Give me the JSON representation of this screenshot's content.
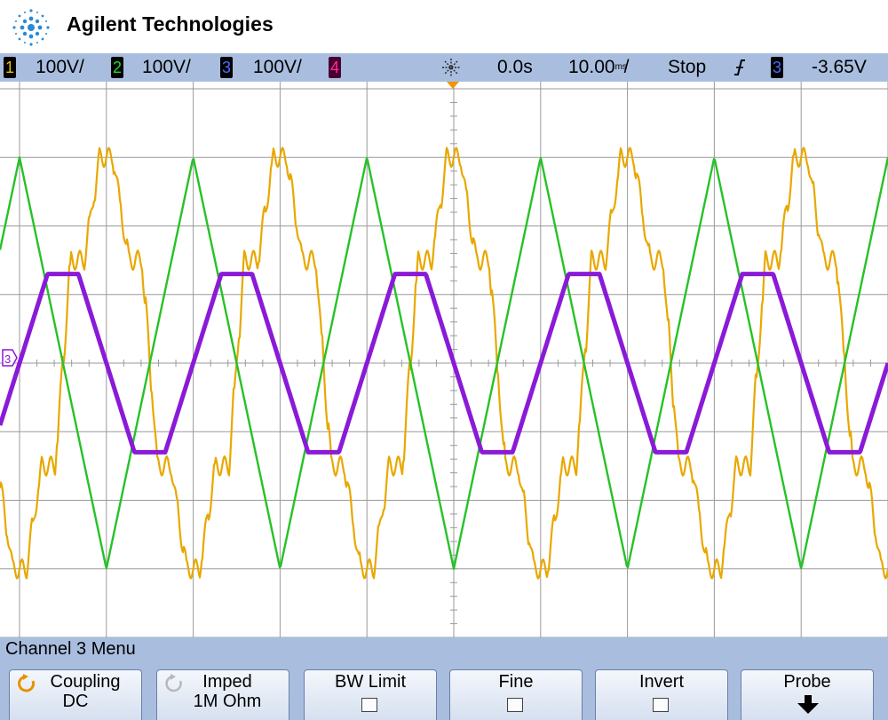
{
  "header": {
    "brand": "Agilent Technologies",
    "logo_icon": "agilent-spark-logo-icon"
  },
  "status_bar": {
    "channels": [
      {
        "number": "1",
        "scale": "100V/",
        "color": "#f2c200"
      },
      {
        "number": "2",
        "scale": "100V/",
        "color": "#22dd22"
      },
      {
        "number": "3",
        "scale": "100V/",
        "color": "#4a6cff"
      },
      {
        "number": "4",
        "scale": "",
        "color": "#ff2e92"
      }
    ],
    "run_icon": "acquisition-spark-icon",
    "time_position": "0.0s",
    "time_scale_value": "10.00",
    "time_scale_unit": "ms",
    "time_scale_suffix": "/",
    "run_state": "Stop",
    "trigger_icon": "rising-edge-trigger-icon",
    "trigger_source": "3",
    "trigger_level": "-3.65V"
  },
  "screen": {
    "ground_marker_label": "3",
    "grid": "on",
    "colors": {
      "ch1": "#e8a800",
      "ch2": "#26c226",
      "ch3": "#8a1ad8",
      "grid": "#9a9a9a"
    }
  },
  "chart_data": {
    "type": "line",
    "title": "",
    "xlabel": "",
    "ylabel": "",
    "x_unit": "ms",
    "x_range": [
      -50,
      50
    ],
    "y_unit": "V",
    "y_range": [
      -400,
      400
    ],
    "series": [
      {
        "name": "",
        "channel": "1",
        "color": "#e8a800",
        "shape": "six-step",
        "period_ms": 20,
        "amplitude_V": 300,
        "step_V": 150,
        "peak_at_ms": [
          -40,
          -20,
          0,
          20,
          40
        ]
      },
      {
        "name": "",
        "channel": "2",
        "color": "#26c226",
        "shape": "triangle",
        "period_ms": 20,
        "amplitude_V": 300,
        "peak_at_ms": [
          -30,
          -10,
          10,
          30
        ]
      },
      {
        "name": "",
        "channel": "3",
        "color": "#8a1ad8",
        "shape": "clipped-triangle",
        "period_ms": 20,
        "amplitude_V": 130,
        "peak_at_ms": [
          -45,
          -25,
          -5,
          15,
          35
        ]
      }
    ]
  },
  "menu": {
    "title": "Channel 3  Menu",
    "softkeys": [
      {
        "line1": "Coupling",
        "line2": "DC",
        "icon": "rotary-knob-icon"
      },
      {
        "line1": "Imped",
        "line2": "1M Ohm",
        "icon": "rotary-knob-icon"
      },
      {
        "line1": "BW Limit",
        "control": "checkbox"
      },
      {
        "line1": "Fine",
        "control": "checkbox"
      },
      {
        "line1": "Invert",
        "control": "checkbox"
      },
      {
        "line1": "Probe",
        "icon": "down-arrow-icon"
      }
    ]
  }
}
